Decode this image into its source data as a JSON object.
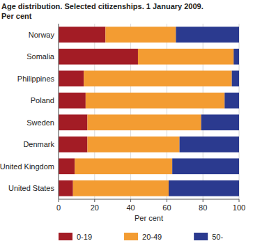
{
  "chart_data": {
    "type": "bar",
    "orientation": "horizontal",
    "stacked": true,
    "title": "Age distribution. Selected citizenships. 1 January 2009.",
    "subtitle": "Per cent",
    "xlabel": "Per cent",
    "categories": [
      "Norway",
      "Somalia",
      "Philippines",
      "Poland",
      "Sweden",
      "Denmark",
      "United Kingdom",
      "United States"
    ],
    "series": [
      {
        "name": "0-19",
        "color": "#a31c25",
        "values": [
          26,
          44,
          14,
          15,
          16,
          16,
          9,
          8
        ]
      },
      {
        "name": "20-49",
        "color": "#f39c32",
        "values": [
          39,
          53,
          82,
          77,
          63,
          51,
          54,
          53
        ]
      },
      {
        "name": "50-",
        "color": "#2b3a8f",
        "values": [
          35,
          3,
          4,
          8,
          21,
          33,
          37,
          39
        ]
      }
    ],
    "xlim": [
      0,
      100
    ],
    "xticks": [
      0,
      20,
      40,
      60,
      80,
      100
    ],
    "grid": true,
    "legend": "bottom"
  }
}
